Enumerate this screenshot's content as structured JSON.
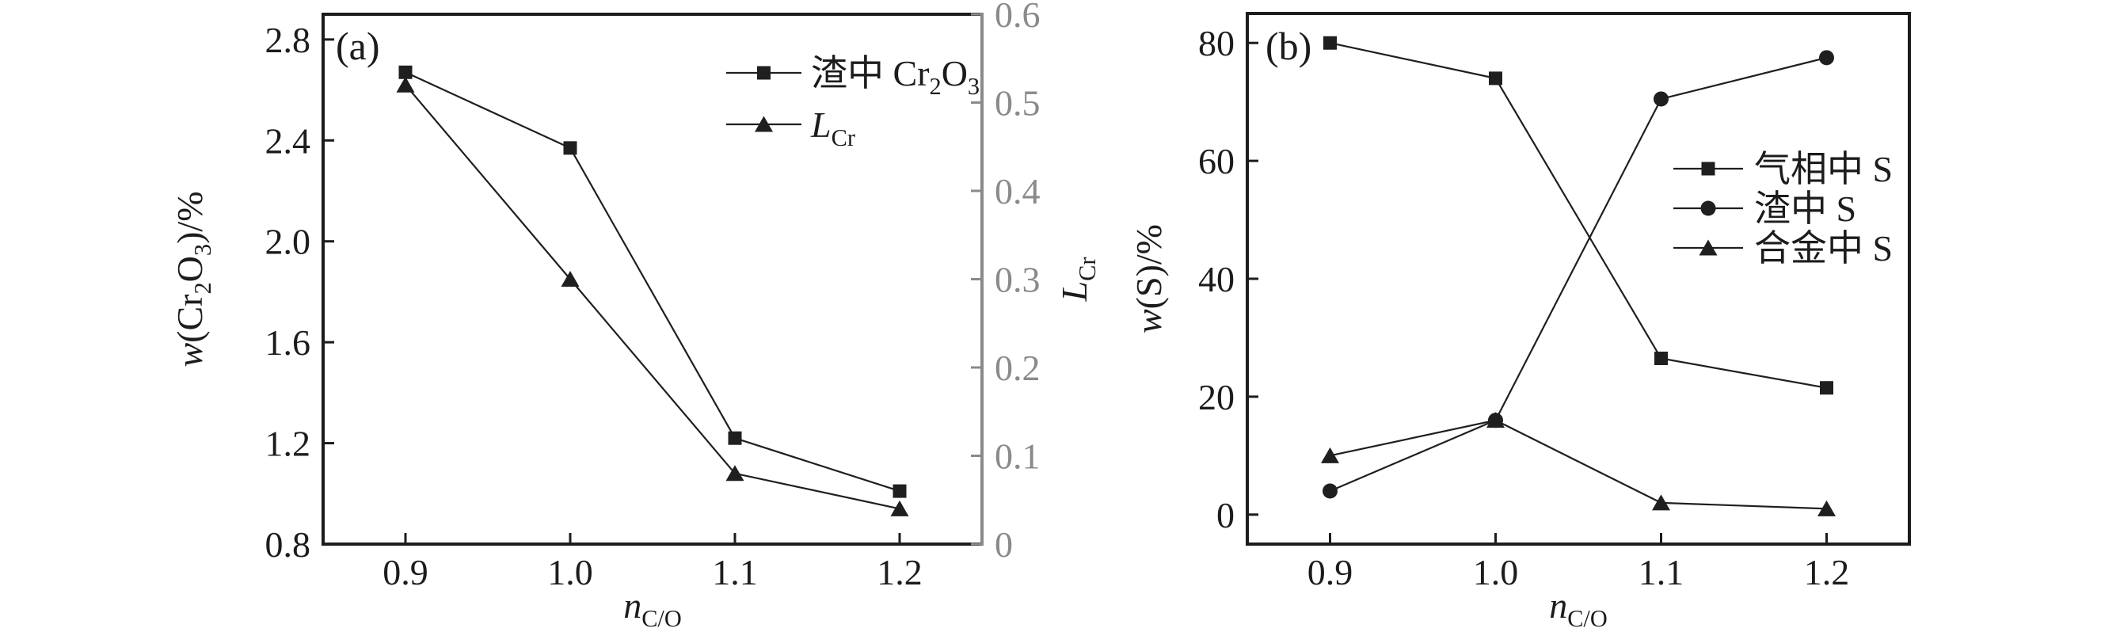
{
  "figure_title": "",
  "styles": {
    "line_color": "#1f1f1f",
    "axis_color": "#1c1c1c",
    "secondary_axis_color": "#8a8a8a",
    "background": "#ffffff"
  },
  "chart_data": [
    {
      "type": "line",
      "panel_label": "(a)",
      "x": [
        0.9,
        1.0,
        1.1,
        1.2
      ],
      "xlim": [
        0.85,
        1.25
      ],
      "xtick_values": [
        0.9,
        1.0,
        1.1,
        1.2
      ],
      "xtick_labels": [
        "0.9",
        "1.0",
        "1.1",
        "1.2"
      ],
      "xlabel": "*n*_{C/O}",
      "grid": false,
      "legend_position": "inside-upper-right",
      "axes": {
        "left": {
          "title": "*w*(Cr_{2}O_{3})/%",
          "lim": [
            0.8,
            2.9
          ],
          "tick_values": [
            0.8,
            1.2,
            1.6,
            2.0,
            2.4,
            2.8
          ],
          "tick_labels": [
            "0.8",
            "1.2",
            "1.6",
            "2.0",
            "2.4",
            "2.8"
          ],
          "color": "#1c1c1c"
        },
        "right": {
          "title": "*L*_{Cr}",
          "title_color": "#1c1c1c",
          "lim": [
            0,
            0.6
          ],
          "tick_values": [
            0,
            0.1,
            0.2,
            0.3,
            0.4,
            0.5,
            0.6
          ],
          "tick_labels": [
            "0",
            "0.1",
            "0.2",
            "0.3",
            "0.4",
            "0.5",
            "0.6"
          ],
          "color": "#8a8a8a"
        }
      },
      "series": [
        {
          "name": "渣中 Cr_{2}O_{3}",
          "marker": "square",
          "axis": "left",
          "values": [
            2.67,
            2.37,
            1.22,
            1.01
          ]
        },
        {
          "name": "*L*_{Cr}",
          "marker": "triangle",
          "axis": "right",
          "values": [
            0.52,
            0.3,
            0.08,
            0.04
          ]
        }
      ]
    },
    {
      "type": "line",
      "panel_label": "(b)",
      "x": [
        0.9,
        1.0,
        1.1,
        1.2
      ],
      "xlim": [
        0.85,
        1.25
      ],
      "xtick_values": [
        0.9,
        1.0,
        1.1,
        1.2
      ],
      "xtick_labels": [
        "0.9",
        "1.0",
        "1.1",
        "1.2"
      ],
      "xlabel": "*n*_{C/O}",
      "grid": false,
      "legend_position": "inside-middle-right",
      "axes": {
        "left": {
          "title": "*w*(S)/%",
          "lim": [
            -5,
            85
          ],
          "tick_values": [
            0,
            20,
            40,
            60,
            80
          ],
          "tick_labels": [
            "0",
            "20",
            "40",
            "60",
            "80"
          ],
          "color": "#1c1c1c"
        }
      },
      "series": [
        {
          "name": "气相中 S",
          "marker": "square",
          "axis": "left",
          "values": [
            80,
            74,
            26.5,
            21.5
          ]
        },
        {
          "name": "渣中 S",
          "marker": "circle",
          "axis": "left",
          "values": [
            4,
            16,
            70.5,
            77.5
          ]
        },
        {
          "name": "合金中 S",
          "marker": "triangle",
          "axis": "left",
          "values": [
            10,
            16,
            2,
            1
          ]
        }
      ]
    }
  ]
}
